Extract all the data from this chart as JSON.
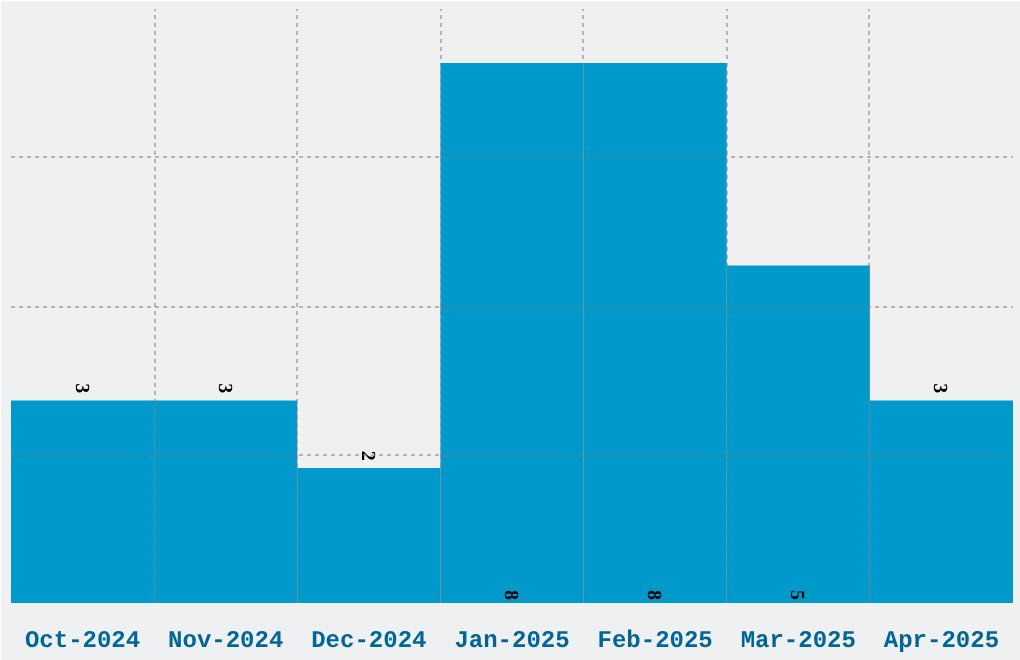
{
  "chart_data": {
    "type": "bar",
    "categories": [
      "Oct-2024",
      "Nov-2024",
      "Dec-2024",
      "Jan-2025",
      "Feb-2025",
      "Mar-2025",
      "Apr-2025"
    ],
    "values": [
      3,
      3,
      2,
      8,
      8,
      5,
      3
    ],
    "color": "#0099cc",
    "ylim": [
      0,
      8.8
    ],
    "yticks": [
      {
        "value": 0,
        "label": null
      },
      {
        "value": 2.2,
        "label": null
      },
      {
        "value": 4.4,
        "label": null
      },
      {
        "value": 6.6,
        "label": null
      },
      {
        "value": 8.8,
        "label": null
      }
    ],
    "tick_labels": "x",
    "grid": true,
    "data_labels": true
  }
}
